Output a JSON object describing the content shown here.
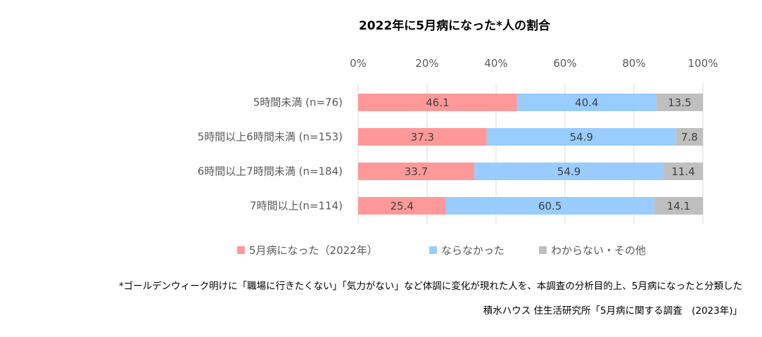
{
  "chart_data": {
    "type": "bar",
    "orientation": "horizontal-stacked-percent",
    "title": "2022年に5月病になった*人の割合",
    "categories": [
      "5時間未満 (n=76)",
      "5時間以上6時間未満 (n=153)",
      "6時間以上7時間未満 (n=184)",
      "7時間以上(n=114)"
    ],
    "series": [
      {
        "name": "5月病になった（2022年）",
        "color": "#ff9999",
        "values": [
          46.1,
          37.3,
          33.7,
          25.4
        ]
      },
      {
        "name": "ならなかった",
        "color": "#99ccff",
        "values": [
          40.4,
          54.9,
          54.9,
          60.5
        ]
      },
      {
        "name": "わからない・その他",
        "color": "#bfbfbf",
        "values": [
          13.5,
          7.8,
          11.4,
          14.1
        ]
      }
    ],
    "value_labels": [
      [
        "46.1",
        "37.3",
        "33.7",
        "25.4"
      ],
      [
        "40.4",
        "54.9",
        "54.9",
        "60.5"
      ],
      [
        "13.5",
        "7.8",
        "11.4",
        "14.1"
      ]
    ],
    "xaxis": {
      "position": "top",
      "range": [
        0,
        100
      ],
      "ticks": [
        0,
        20,
        40,
        60,
        80,
        100
      ],
      "tick_labels": [
        "0%",
        "20%",
        "40%",
        "60%",
        "80%",
        "100%"
      ]
    },
    "grid": true,
    "legend": "bottom",
    "footnote": "*ゴールデンウィーク明けに「職場に行きたくない」「気力がない」など体調に変化が現れた人を、本調査の分析目的上、5月病になったと分類した",
    "source": "積水ハウス 住生活研究所「5月病に関する調査　(2023年)」"
  }
}
